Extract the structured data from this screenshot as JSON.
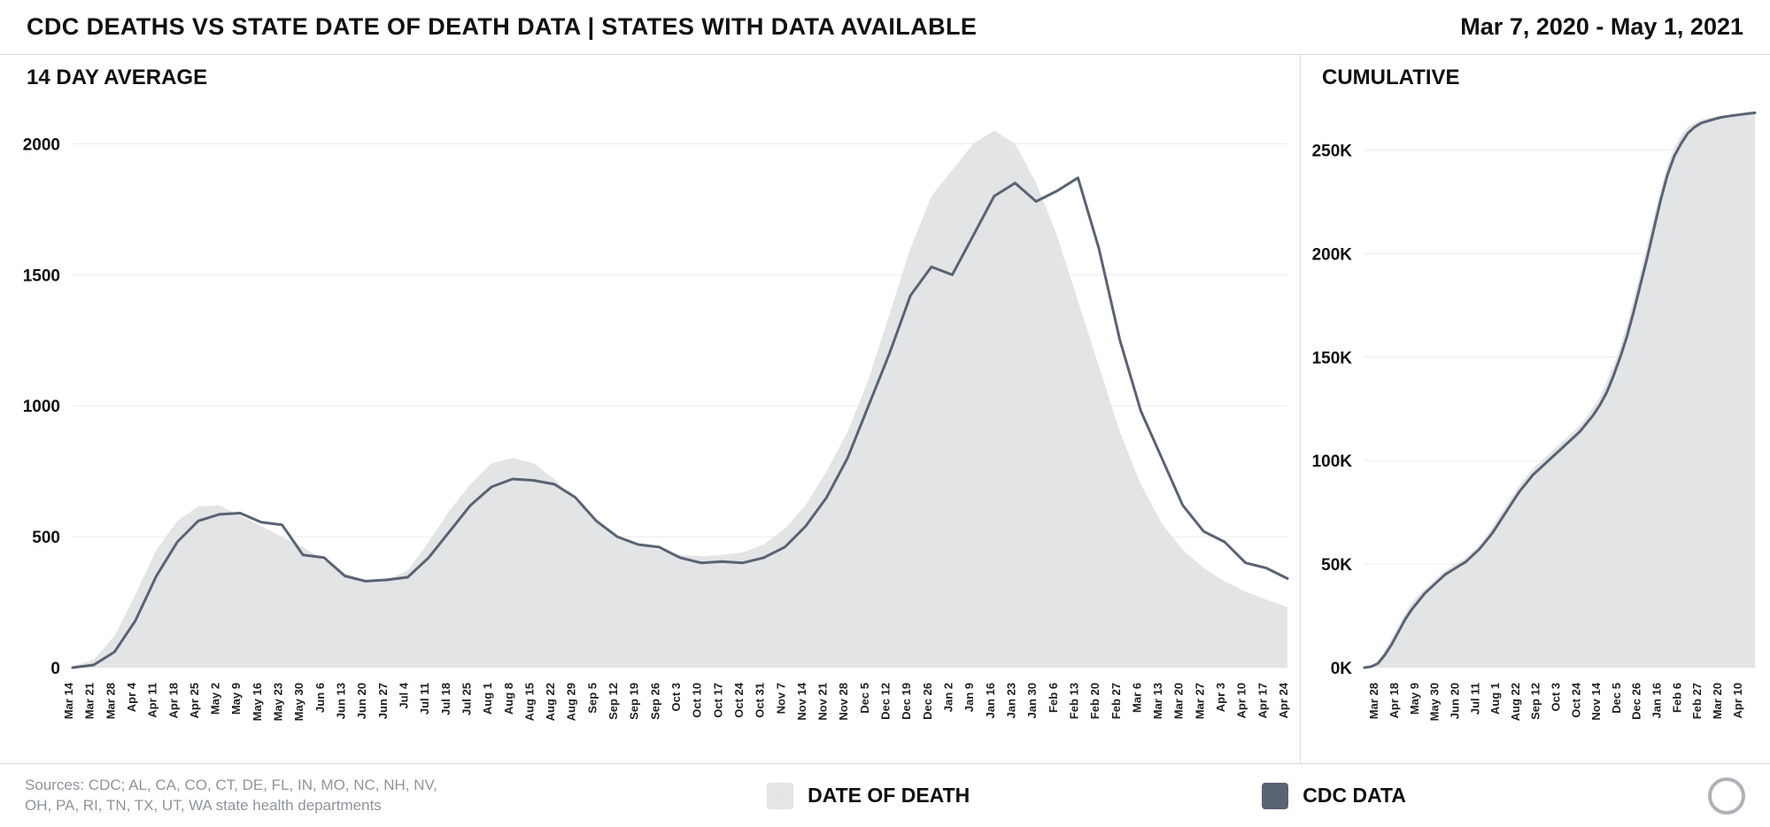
{
  "header": {
    "title": "CDC DEATHS VS STATE DATE OF DEATH DATA | STATES WITH DATA AVAILABLE",
    "date_range": "Mar 7, 2020 - May 1, 2021"
  },
  "colors": {
    "area": "#e3e4e6",
    "line": "#5a6372",
    "grid": "#ececec",
    "divider": "#dcdcdc"
  },
  "footer": {
    "sources_line1": "Sources: CDC; AL, CA, CO, CT, DE, FL, IN, MO, NC, NH, NV,",
    "sources_line2": "OH, PA, RI, TN, TX, UT, WA state health departments",
    "legend": [
      {
        "label": "DATE OF DEATH",
        "color": "#e3e4e6"
      },
      {
        "label": "CDC DATA",
        "color": "#5a6372"
      }
    ]
  },
  "chart_data": [
    {
      "type": "area",
      "subtype": "area-plus-line",
      "title": "14 DAY AVERAGE",
      "xlabel": "",
      "ylabel": "",
      "ylim": [
        0,
        2150
      ],
      "yticks": [
        0,
        500,
        1000,
        1500,
        2000
      ],
      "ytick_labels": [
        "0",
        "500",
        "1000",
        "1500",
        "2000"
      ],
      "grid": true,
      "legend_position": "footer",
      "xtick_start": 0,
      "xtick_step": 1,
      "categories": [
        "Mar 14",
        "Mar 21",
        "Mar 28",
        "Apr 4",
        "Apr 11",
        "Apr 18",
        "Apr 25",
        "May 2",
        "May 9",
        "May 16",
        "May 23",
        "May 30",
        "Jun 6",
        "Jun 13",
        "Jun 20",
        "Jun 27",
        "Jul 4",
        "Jul 11",
        "Jul 18",
        "Jul 25",
        "Aug 1",
        "Aug 8",
        "Aug 15",
        "Aug 22",
        "Aug 29",
        "Sep 5",
        "Sep 12",
        "Sep 19",
        "Sep 26",
        "Oct 3",
        "Oct 10",
        "Oct 17",
        "Oct 24",
        "Oct 31",
        "Nov 7",
        "Nov 14",
        "Nov 21",
        "Nov 28",
        "Dec 5",
        "Dec 12",
        "Dec 19",
        "Dec 26",
        "Jan 2",
        "Jan 9",
        "Jan 16",
        "Jan 23",
        "Jan 30",
        "Feb 6",
        "Feb 13",
        "Feb 20",
        "Feb 27",
        "Mar 6",
        "Mar 13",
        "Mar 20",
        "Mar 27",
        "Apr 3",
        "Apr 10",
        "Apr 17",
        "Apr 24"
      ],
      "series": [
        {
          "name": "DATE OF DEATH",
          "style": "area",
          "values": [
            5,
            30,
            120,
            280,
            450,
            560,
            615,
            620,
            580,
            540,
            500,
            460,
            410,
            360,
            330,
            335,
            370,
            480,
            600,
            700,
            780,
            800,
            780,
            720,
            640,
            560,
            500,
            470,
            450,
            430,
            425,
            430,
            440,
            470,
            530,
            620,
            750,
            900,
            1100,
            1350,
            1600,
            1800,
            1900,
            2000,
            2050,
            2000,
            1850,
            1650,
            1400,
            1150,
            900,
            700,
            550,
            450,
            380,
            330,
            290,
            260,
            230
          ]
        },
        {
          "name": "CDC DATA",
          "style": "line",
          "values": [
            0,
            10,
            60,
            180,
            350,
            480,
            560,
            585,
            590,
            555,
            545,
            430,
            420,
            350,
            330,
            335,
            345,
            420,
            520,
            620,
            690,
            720,
            715,
            700,
            650,
            560,
            500,
            470,
            460,
            420,
            400,
            405,
            400,
            420,
            460,
            540,
            650,
            800,
            1000,
            1200,
            1420,
            1530,
            1500,
            1650,
            1800,
            1850,
            1780,
            1820,
            1870,
            1600,
            1250,
            980,
            800,
            620,
            520,
            480,
            400,
            380,
            340
          ]
        }
      ]
    },
    {
      "type": "area",
      "subtype": "area-plus-line",
      "title": "CUMULATIVE",
      "xlabel": "",
      "ylabel": "",
      "unit": "K",
      "ylim": [
        0,
        272
      ],
      "yticks": [
        0,
        50,
        100,
        150,
        200,
        250
      ],
      "ytick_labels": [
        "0K",
        "50K",
        "100K",
        "150K",
        "200K",
        "250K"
      ],
      "grid": true,
      "legend_position": "footer",
      "xtick_start": 2,
      "xtick_step": 3,
      "categories": [
        "Mar 14",
        "Mar 21",
        "Mar 28",
        "Apr 4",
        "Apr 11",
        "Apr 18",
        "Apr 25",
        "May 2",
        "May 9",
        "May 16",
        "May 23",
        "May 30",
        "Jun 6",
        "Jun 13",
        "Jun 20",
        "Jun 27",
        "Jul 4",
        "Jul 11",
        "Jul 18",
        "Jul 25",
        "Aug 1",
        "Aug 8",
        "Aug 15",
        "Aug 22",
        "Aug 29",
        "Sep 5",
        "Sep 12",
        "Sep 19",
        "Sep 26",
        "Oct 3",
        "Oct 10",
        "Oct 17",
        "Oct 24",
        "Oct 31",
        "Nov 7",
        "Nov 14",
        "Nov 21",
        "Nov 28",
        "Dec 5",
        "Dec 12",
        "Dec 19",
        "Dec 26",
        "Jan 2",
        "Jan 9",
        "Jan 16",
        "Jan 23",
        "Jan 30",
        "Feb 6",
        "Feb 13",
        "Feb 20",
        "Feb 27",
        "Mar 6",
        "Mar 13",
        "Mar 20",
        "Mar 27",
        "Apr 3",
        "Apr 10",
        "Apr 17",
        "Apr 24"
      ],
      "series": [
        {
          "name": "DATE OF DEATH",
          "style": "area",
          "values": [
            0,
            1,
            3,
            8,
            14,
            20,
            26,
            31,
            35,
            38,
            41,
            44,
            47,
            49,
            51,
            53,
            56,
            59,
            63,
            68,
            73,
            78,
            83,
            88,
            92,
            96,
            99,
            102,
            105,
            108,
            111,
            114,
            117,
            121,
            126,
            131,
            138,
            146,
            155,
            166,
            178,
            191,
            204,
            218,
            231,
            243,
            251,
            257,
            261,
            263,
            264.5,
            265.5,
            266,
            266.5,
            267,
            267.3,
            267.6,
            267.8,
            268
          ]
        },
        {
          "name": "CDC DATA",
          "style": "line",
          "values": [
            0,
            0.5,
            2,
            6,
            11,
            17,
            23,
            28,
            32,
            36,
            39,
            42,
            45,
            47,
            49,
            51,
            54,
            57,
            61,
            65,
            70,
            75,
            80,
            85,
            89,
            93,
            96,
            99,
            102,
            105,
            108,
            111,
            114,
            118,
            122,
            127,
            133,
            141,
            150,
            160,
            172,
            185,
            198,
            212,
            226,
            238,
            247,
            253,
            258,
            261,
            263,
            264,
            265,
            265.8,
            266.3,
            266.8,
            267.2,
            267.6,
            268
          ]
        }
      ]
    }
  ]
}
